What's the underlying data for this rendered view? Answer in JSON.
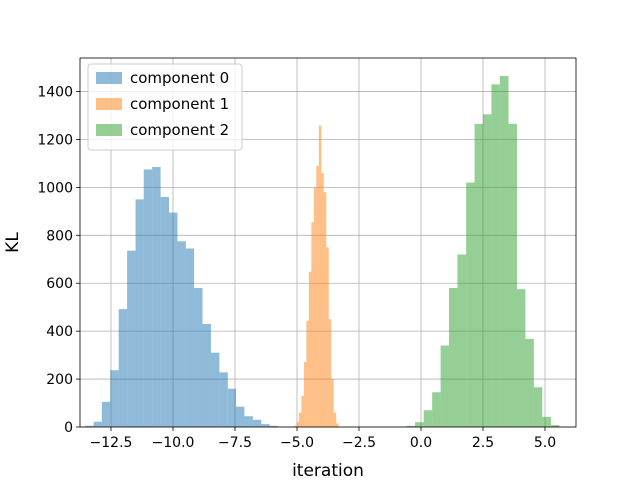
{
  "chart_data": {
    "type": "bar",
    "subtype": "histogram",
    "title": "",
    "xlabel": "iteration",
    "ylabel": "KL",
    "xlim": [
      -13.75,
      6.25
    ],
    "ylim": [
      0,
      1540
    ],
    "xticks": [
      -12.5,
      -10.0,
      -7.5,
      -5.0,
      -2.5,
      0.0,
      2.5,
      5.0
    ],
    "xtick_labels": [
      "−12.5",
      "−10.0",
      "−7.5",
      "−5.0",
      "−2.5",
      "0.0",
      "2.5",
      "5.0"
    ],
    "yticks": [
      0,
      200,
      400,
      600,
      800,
      1000,
      1200,
      1400
    ],
    "ytick_labels": [
      "0",
      "200",
      "400",
      "600",
      "800",
      "1000",
      "1200",
      "1400"
    ],
    "grid": true,
    "legend_position": "top-left",
    "series": [
      {
        "name": "component 0",
        "color": "#1f77b4",
        "alpha": 0.5,
        "bin_edges": [
          -13.54,
          -13.2,
          -12.87,
          -12.53,
          -12.19,
          -11.85,
          -11.51,
          -11.18,
          -10.84,
          -10.5,
          -10.16,
          -9.82,
          -9.48,
          -9.15,
          -8.81,
          -8.47,
          -8.13,
          -7.79,
          -7.46,
          -7.12,
          -6.78,
          -6.44,
          -6.1,
          -5.77
        ],
        "counts": [
          5,
          22,
          105,
          237,
          492,
          736,
          950,
          1075,
          1085,
          960,
          895,
          775,
          745,
          580,
          430,
          310,
          228,
          160,
          85,
          45,
          30,
          12,
          5
        ]
      },
      {
        "name": "component 1",
        "color": "#ff7f0e",
        "alpha": 0.5,
        "bin_edges": [
          -5.12,
          -5.02,
          -4.92,
          -4.82,
          -4.72,
          -4.62,
          -4.52,
          -4.42,
          -4.32,
          -4.22,
          -4.12,
          -4.02,
          -3.92,
          -3.82,
          -3.72,
          -3.62,
          -3.52,
          -3.42,
          -3.32
        ],
        "counts": [
          5,
          20,
          60,
          130,
          272,
          444,
          648,
          855,
          1000,
          1090,
          1258,
          1060,
          980,
          750,
          450,
          200,
          60,
          15
        ]
      },
      {
        "name": "component 2",
        "color": "#2ca02c",
        "alpha": 0.5,
        "bin_edges": [
          -0.58,
          -0.24,
          0.11,
          0.45,
          0.79,
          1.13,
          1.47,
          1.82,
          2.16,
          2.5,
          2.84,
          3.18,
          3.53,
          3.87,
          4.21,
          4.55,
          4.89,
          5.24,
          5.58
        ],
        "counts": [
          5,
          20,
          70,
          145,
          340,
          580,
          720,
          1020,
          1265,
          1305,
          1430,
          1465,
          1265,
          575,
          368,
          166,
          42,
          8
        ]
      }
    ]
  }
}
